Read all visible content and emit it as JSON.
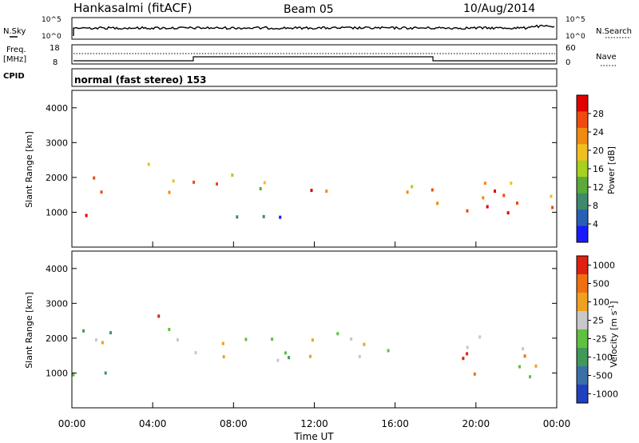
{
  "header": {
    "station": "Hankasalmi (fitACF)",
    "beam": "Beam 05",
    "date": "10/Aug/2014"
  },
  "sidebar": {
    "nsky_label": "N.Sky",
    "freq_label_1": "Freq.",
    "freq_label_2": "[MHz]",
    "cpid_label": "CPID",
    "nsearch_label": "N.Search",
    "nave_label": "Nave"
  },
  "cpid": {
    "mode": "normal (fast stereo) 153"
  },
  "top_axes": {
    "nsky_ticks": [
      "10^5",
      "10^0"
    ],
    "freq_ticks": [
      "18",
      "8"
    ],
    "nave_ticks": [
      "60",
      "0"
    ],
    "nsearch_ticks": [
      "10^5",
      "10^0"
    ]
  },
  "chart_data": [
    {
      "type": "heatmap",
      "name_panel": "power",
      "ylabel": "Slant Range [km]",
      "y_ticks": [
        "1000",
        "2000",
        "3000",
        "4000"
      ],
      "ylim": [
        0,
        4500
      ],
      "xlim_hours": [
        0,
        24
      ],
      "colorbar_label": "Power [dB]",
      "colorbar_ticks": [
        "4",
        "8",
        "12",
        "16",
        "20",
        "24",
        "28"
      ],
      "colors": [
        "#1a1aff",
        "#2a5fb8",
        "#3f8a6a",
        "#5caa3a",
        "#a8d020",
        "#f0c020",
        "#f08a10",
        "#f04a10",
        "#e00000"
      ],
      "echo_bands": [
        {
          "t0": 0.0,
          "t1": 1.0,
          "r0": 800,
          "r1": 1300,
          "level": 0.95
        },
        {
          "t0": 0.0,
          "t1": 6.0,
          "r0": 1500,
          "r1": 2100,
          "level": 0.7
        },
        {
          "t0": 2.0,
          "t1": 4.0,
          "r0": 2000,
          "r1": 2500,
          "level": 0.75
        },
        {
          "t0": 6.0,
          "t1": 10.0,
          "r0": 1600,
          "r1": 2300,
          "level": 0.6
        },
        {
          "t0": 10.0,
          "t1": 18.0,
          "r0": 1500,
          "r1": 1900,
          "level": 0.72
        },
        {
          "t0": 18.0,
          "t1": 24.0,
          "r0": 900,
          "r1": 2300,
          "level": 0.8
        },
        {
          "t0": 3.0,
          "t1": 11.0,
          "r0": 750,
          "r1": 1000,
          "level": 0.35
        }
      ]
    },
    {
      "type": "heatmap",
      "name_panel": "velocity",
      "ylabel": "Slant Range [km]",
      "y_ticks": [
        "1000",
        "2000",
        "3000",
        "4000"
      ],
      "ylim": [
        0,
        4500
      ],
      "xlim_hours": [
        0,
        24
      ],
      "xlabel": "Time UT",
      "x_ticks": [
        "00:00",
        "04:00",
        "08:00",
        "12:00",
        "16:00",
        "20:00",
        "00:00"
      ],
      "colorbar_label": "Velocity [m s^-1]",
      "colorbar_ticks": [
        "1000",
        "500",
        "100",
        "25",
        "-25",
        "-100",
        "-500",
        "-1000"
      ],
      "colors": [
        "#2040c0",
        "#3a70a8",
        "#3f9a5a",
        "#60c040",
        "#c8c8c8",
        "#f0a020",
        "#f07010",
        "#e02010"
      ],
      "echo_bands": [
        {
          "t0": 0.0,
          "t1": 6.0,
          "r0": 1600,
          "r1": 2300,
          "level": 0.5
        },
        {
          "t0": 0.0,
          "t1": 2.0,
          "r0": 800,
          "r1": 1400,
          "level": 0.35
        },
        {
          "t0": 3.0,
          "t1": 4.5,
          "r0": 2400,
          "r1": 2750,
          "level": 0.7
        },
        {
          "t0": 6.0,
          "t1": 18.0,
          "r0": 1400,
          "r1": 2300,
          "level": 0.5
        },
        {
          "t0": 18.0,
          "t1": 24.0,
          "r0": 900,
          "r1": 2100,
          "level": 0.68
        }
      ]
    }
  ]
}
